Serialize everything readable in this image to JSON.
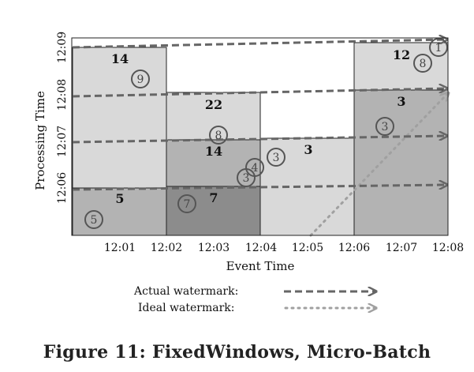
{
  "figure": {
    "caption": "Figure 11: FixedWindows, Micro-Batch",
    "x_axis_label": "Event Time",
    "y_axis_label": "Processing Time",
    "x_ticks": [
      "12:01",
      "12:02",
      "12:03",
      "12:04",
      "12:05",
      "12:06",
      "12:07",
      "12:08"
    ],
    "y_ticks": [
      "12:06",
      "12:07",
      "12:08",
      "12:09"
    ],
    "legend": {
      "actual_label": "Actual watermark:",
      "ideal_label": "Ideal watermark:"
    },
    "colors": {
      "pane_light": "#d9d9d9",
      "pane_mid": "#b3b3b3",
      "pane_dark": "#8c8c8c",
      "actual_watermark": "#666666",
      "ideal_watermark": "#a0a0a0",
      "datum": "#555555"
    }
  },
  "chart_data": {
    "type": "scatter",
    "xlabel": "Event Time",
    "ylabel": "Processing Time",
    "panes": [
      {
        "window": [
          "12:00",
          "12:02"
        ],
        "result": "5",
        "shade": "mid"
      },
      {
        "window": [
          "12:00",
          "12:02"
        ],
        "result": "14",
        "shade": "light"
      },
      {
        "window": [
          "12:02",
          "12:04"
        ],
        "result": "7",
        "shade": "dark"
      },
      {
        "window": [
          "12:02",
          "12:04"
        ],
        "result": "14",
        "shade": "mid"
      },
      {
        "window": [
          "12:02",
          "12:04"
        ],
        "result": "22",
        "shade": "light"
      },
      {
        "window": [
          "12:04",
          "12:06"
        ],
        "result": "3",
        "shade": "light"
      },
      {
        "window": [
          "12:06",
          "12:08"
        ],
        "result": "3",
        "shade": "mid"
      },
      {
        "window": [
          "12:06",
          "12:08"
        ],
        "result": "12",
        "shade": "light"
      }
    ],
    "data_points": [
      {
        "value": 5
      },
      {
        "value": 9
      },
      {
        "value": 7
      },
      {
        "value": 8
      },
      {
        "value": 3
      },
      {
        "value": 4
      },
      {
        "value": 3
      },
      {
        "value": 3
      },
      {
        "value": 8
      },
      {
        "value": 1
      }
    ],
    "series": [
      {
        "name": "Actual watermark",
        "style": "dashed"
      },
      {
        "name": "Ideal watermark",
        "style": "dotted"
      }
    ]
  }
}
